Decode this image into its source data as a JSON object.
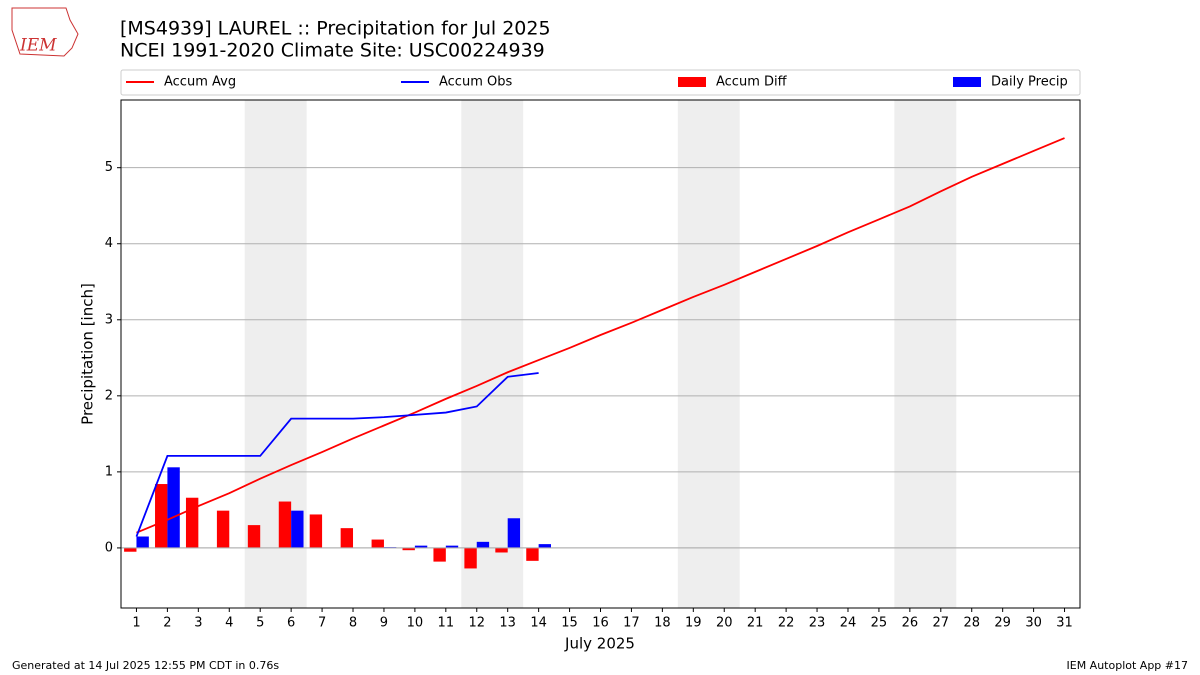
{
  "chart_data": {
    "type": "line",
    "logo_text": "IEM",
    "title": "[MS4939] LAUREL :: Precipitation for Jul 2025",
    "subtitle": "NCEI 1991-2020 Climate Site: USC00224939",
    "xlabel": "July 2025",
    "ylabel": "Precipitation [inch]",
    "x": [
      1,
      2,
      3,
      4,
      5,
      6,
      7,
      8,
      9,
      10,
      11,
      12,
      13,
      14,
      15,
      16,
      17,
      18,
      19,
      20,
      21,
      22,
      23,
      24,
      25,
      26,
      27,
      28,
      29,
      30,
      31
    ],
    "xlim": [
      0.5,
      31.5
    ],
    "xticks": [
      1,
      2,
      3,
      4,
      5,
      6,
      7,
      8,
      9,
      10,
      11,
      12,
      13,
      14,
      15,
      16,
      17,
      18,
      19,
      20,
      21,
      22,
      23,
      24,
      25,
      26,
      27,
      28,
      29,
      30,
      31
    ],
    "ylim": [
      -0.79,
      5.89
    ],
    "yticks": [
      0,
      1,
      2,
      3,
      4,
      5
    ],
    "grid": true,
    "weekend_spans": [
      [
        4.5,
        6.5
      ],
      [
        11.5,
        13.5
      ],
      [
        18.5,
        20.5
      ],
      [
        25.5,
        27.5
      ]
    ],
    "series": [
      {
        "name": "Accum Avg",
        "kind": "line",
        "color": "#ff0000",
        "values": [
          0.2,
          0.37,
          0.55,
          0.72,
          0.91,
          1.09,
          1.26,
          1.44,
          1.61,
          1.78,
          1.96,
          2.13,
          2.31,
          2.47,
          2.63,
          2.8,
          2.96,
          3.13,
          3.3,
          3.46,
          3.63,
          3.8,
          3.97,
          4.15,
          4.32,
          4.49,
          4.69,
          4.88,
          5.05,
          5.22,
          5.39
        ]
      },
      {
        "name": "Accum Obs",
        "kind": "line",
        "color": "#0000ff",
        "values": [
          0.15,
          1.21,
          1.21,
          1.21,
          1.21,
          1.7,
          1.7,
          1.7,
          1.72,
          1.75,
          1.78,
          1.86,
          2.25,
          2.3,
          null,
          null,
          null,
          null,
          null,
          null,
          null,
          null,
          null,
          null,
          null,
          null,
          null,
          null,
          null,
          null,
          null
        ]
      },
      {
        "name": "Accum Diff",
        "kind": "bar",
        "offset": -0.4,
        "color": "#ff0000",
        "values": [
          -0.05,
          0.84,
          0.66,
          0.49,
          0.3,
          0.61,
          0.44,
          0.26,
          0.11,
          -0.03,
          -0.18,
          -0.27,
          -0.06,
          -0.17,
          null,
          null,
          null,
          null,
          null,
          null,
          null,
          null,
          null,
          null,
          null,
          null,
          null,
          null,
          null,
          null,
          null
        ]
      },
      {
        "name": "Daily Precip",
        "kind": "bar",
        "offset": 0,
        "color": "#0000ff",
        "values": [
          0.15,
          1.06,
          0,
          0,
          0,
          0.49,
          0,
          0,
          0.01,
          0.03,
          0.03,
          0.08,
          0.39,
          0.05,
          null,
          null,
          null,
          null,
          null,
          null,
          null,
          null,
          null,
          null,
          null,
          null,
          null,
          null,
          null,
          null,
          null
        ]
      }
    ],
    "footer_left": "Generated at 14 Jul 2025 12:55 PM CDT in 0.76s",
    "footer_right": "IEM Autoplot App #17"
  }
}
